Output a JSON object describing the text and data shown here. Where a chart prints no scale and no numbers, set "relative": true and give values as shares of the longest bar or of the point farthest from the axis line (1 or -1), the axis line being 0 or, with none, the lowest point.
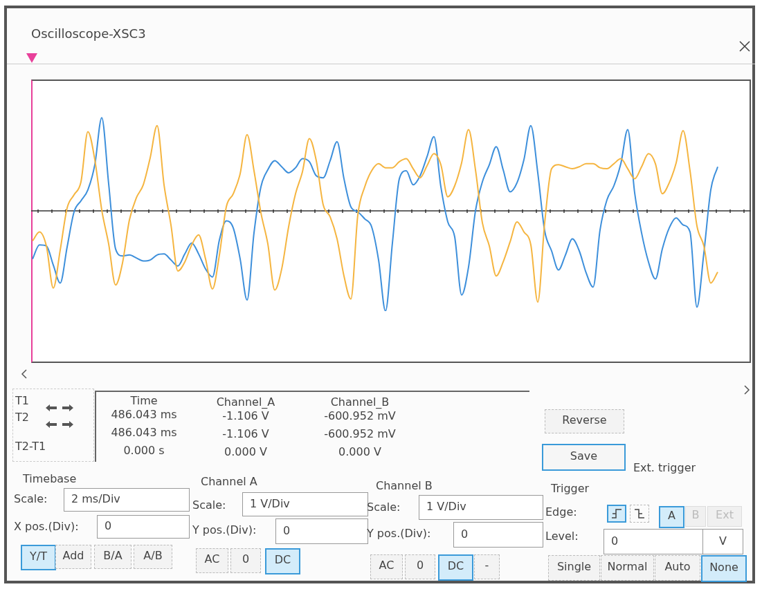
{
  "chart_data": {
    "type": "line",
    "title": "Oscilloscope-XSC3",
    "relative": true,
    "legend": false,
    "marker": "none",
    "categories": [
      null,
      null,
      null,
      null,
      null,
      null,
      null,
      null,
      null,
      null,
      null,
      null,
      null,
      null,
      null,
      null,
      null,
      null,
      null,
      null,
      null,
      null,
      null,
      null,
      null,
      null,
      null,
      null,
      null,
      null,
      null,
      null,
      null,
      null,
      null,
      null,
      null,
      null,
      null,
      null,
      null,
      null,
      null,
      null,
      null,
      null,
      null,
      null,
      null,
      null,
      null,
      null,
      null,
      null,
      null,
      null,
      null,
      null,
      null,
      null,
      null,
      null,
      null,
      null,
      null,
      null,
      null,
      null,
      null,
      null,
      null,
      null,
      null,
      null,
      null,
      null,
      null,
      null,
      null,
      null,
      null,
      null,
      null,
      null,
      null,
      null,
      null,
      null,
      null,
      null,
      null,
      null,
      null,
      null,
      null,
      null,
      null,
      null,
      null,
      null
    ],
    "series": [
      {
        "color": "#f5b540",
        "values": [
          -0.3,
          -0.21,
          -0.35,
          -0.77,
          -0.39,
          0.03,
          0.16,
          0.29,
          0.79,
          0.51,
          0.01,
          -0.33,
          -0.74,
          -0.52,
          -0.09,
          0.13,
          0.26,
          0.53,
          0.85,
          0.26,
          -0.14,
          -0.6,
          -0.51,
          -0.34,
          -0.24,
          -0.48,
          -0.78,
          -0.44,
          0.04,
          0.17,
          0.37,
          0.76,
          0.4,
          -0.02,
          -0.33,
          -0.79,
          -0.58,
          -0.16,
          0.17,
          0.39,
          0.72,
          0.5,
          0.06,
          -0.06,
          -0.28,
          -0.65,
          -0.88,
          -0.04,
          0.24,
          0.4,
          0.47,
          0.43,
          0.43,
          0.49,
          0.52,
          0.42,
          0.33,
          0.45,
          0.57,
          0.46,
          0.14,
          0.25,
          0.48,
          0.81,
          0.41,
          -0.12,
          -0.35,
          -0.65,
          -0.51,
          -0.31,
          -0.11,
          -0.21,
          -0.34,
          -0.91,
          -0.12,
          0.42,
          0.46,
          0.44,
          0.42,
          0.44,
          0.47,
          0.47,
          0.43,
          0.42,
          0.47,
          0.52,
          0.42,
          0.32,
          0.44,
          0.57,
          0.47,
          0.17,
          0.28,
          0.48,
          0.8,
          0.4,
          -0.15,
          -0.35,
          -0.72,
          -0.61
        ]
      },
      {
        "color": "#3d8fdb",
        "values": [
          -0.48,
          -0.34,
          -0.35,
          -0.54,
          -0.72,
          -0.36,
          -0.01,
          0.1,
          0.21,
          0.46,
          0.93,
          0.27,
          -0.38,
          -0.45,
          -0.44,
          -0.47,
          -0.5,
          -0.49,
          -0.44,
          -0.43,
          -0.49,
          -0.55,
          -0.43,
          -0.32,
          -0.43,
          -0.58,
          -0.66,
          -0.29,
          -0.1,
          -0.17,
          -0.48,
          -0.89,
          -0.22,
          0.24,
          0.41,
          0.5,
          0.44,
          0.38,
          0.43,
          0.52,
          0.49,
          0.35,
          0.33,
          0.5,
          0.69,
          0.32,
          0.04,
          -0.01,
          -0.08,
          -0.16,
          -0.49,
          -1.0,
          -0.32,
          0.32,
          0.4,
          0.26,
          0.35,
          0.54,
          0.74,
          0.24,
          -0.11,
          -0.26,
          -0.84,
          -0.56,
          0.0,
          0.29,
          0.46,
          0.64,
          0.41,
          0.19,
          0.28,
          0.51,
          0.85,
          0.38,
          -0.2,
          -0.4,
          -0.59,
          -0.44,
          -0.28,
          -0.4,
          -0.62,
          -0.76,
          -0.19,
          0.11,
          0.25,
          0.47,
          0.81,
          0.18,
          -0.22,
          -0.51,
          -0.68,
          -0.38,
          -0.17,
          -0.07,
          -0.14,
          -0.21,
          -0.96,
          -0.42,
          0.21,
          0.44
        ]
      }
    ],
    "annotations": [
      "T1",
      "T2",
      "T2-T1",
      "Time",
      "486.043 ms",
      "486.043 ms",
      "0.000 s",
      "Channel_A",
      "-1.106 V",
      "-1.106 V",
      "0.000 V",
      "Channel_B",
      "-600.952 mV",
      "-600.952 mV",
      "0.000 V",
      "Reverse",
      "Save",
      "Ext. trigger",
      "Timebase",
      "Scale:",
      "2 ms/Div",
      "X pos.(Div):",
      "0",
      "Y/T",
      "Add",
      "B/A",
      "A/B",
      "Channel A",
      "Scale:",
      "1 V/Div",
      "Y pos.(Div):",
      "0",
      "AC",
      "0",
      "DC",
      "Channel B",
      "Scale:",
      "1 V/Div",
      "Y pos.(Div):",
      "0",
      "AC",
      "0",
      "DC",
      "-",
      "Trigger",
      "Edge:",
      "A",
      "B",
      "Ext",
      "Level:",
      "0",
      "V",
      "Single",
      "Normal",
      "Auto",
      "None"
    ]
  }
}
